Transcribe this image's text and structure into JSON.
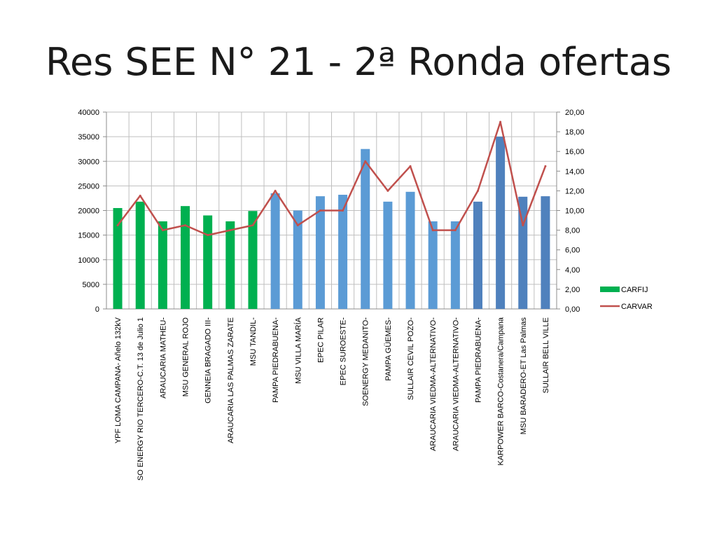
{
  "slide": {
    "title": "Res SEE N° 21 - 2ª Ronda ofertas"
  },
  "chart_data": {
    "type": "bar",
    "title": "",
    "categories": [
      "YPF LOMA CAMPANA- Añelo 132kV",
      "SO ENERGY RIO TERCERO-C.T. 13 de Julio 1",
      "ARAUCARIA MATHEU-",
      "MSU GENERAL ROJO",
      "GENNEIA BRAGADO III-",
      "ARAUCARIA LAS PALMAS ZARATE",
      "MSU TANDIL-",
      "PAMPA PIEDRABUENA-",
      "MSU VILLA MARÍA",
      "EPEC PILAR",
      "EPEC SUROESTE-",
      "SOENERGY MEDANITO-",
      "PAMPA GÜEMES-",
      "SULLAIR CEVIL POZO-",
      "ARAUCARIA VIEDMA-ALTERNATIVO-",
      "ARAUCARIA VIEDMA-ALTERNATIVO-",
      "PAMPA PIEDRABUENA-",
      "KARPOWER BARCO-Costanera/Campana",
      "MSU BARADERO-ET Las Palmas",
      "SULLAIR BELL VILLE"
    ],
    "series": [
      {
        "name": "CARFIJ",
        "axis": "left",
        "type": "bar",
        "color": "#00b050",
        "values": [
          20500,
          21800,
          17800,
          20900,
          19000,
          17800,
          19900,
          23500,
          20000,
          22900,
          23200,
          32500,
          21800,
          23800,
          17800,
          17800,
          21800,
          35000,
          22800,
          22900
        ],
        "bar_colors": [
          "#00b050",
          "#00b050",
          "#00b050",
          "#00b050",
          "#00b050",
          "#00b050",
          "#00b050",
          "#5b9bd5",
          "#5b9bd5",
          "#5b9bd5",
          "#5b9bd5",
          "#5b9bd5",
          "#5b9bd5",
          "#5b9bd5",
          "#5b9bd5",
          "#5b9bd5",
          "#4f81bd",
          "#4f81bd",
          "#4f81bd",
          "#4f81bd"
        ]
      },
      {
        "name": "CARVAR",
        "axis": "right",
        "type": "line",
        "color": "#c0504d",
        "values": [
          8.5,
          11.5,
          8.0,
          8.5,
          7.5,
          8.0,
          8.5,
          12.0,
          8.5,
          10.0,
          10.0,
          15.0,
          12.0,
          14.5,
          8.0,
          8.0,
          12.0,
          19.0,
          8.5,
          14.5
        ]
      }
    ],
    "y_left": {
      "min": 0,
      "max": 40000,
      "step": 5000,
      "tick_labels": [
        "0",
        "5000",
        "10000",
        "15000",
        "20000",
        "25000",
        "30000",
        "35000",
        "40000"
      ]
    },
    "y_right": {
      "min": 0,
      "max": 20,
      "step": 2,
      "tick_labels": [
        "0,00",
        "2,00",
        "4,00",
        "6,00",
        "8,00",
        "10,00",
        "12,00",
        "14,00",
        "16,00",
        "18,00",
        "20,00"
      ]
    },
    "grid": true,
    "legend": {
      "position": "right",
      "entries": [
        "CARFIJ",
        "CARVAR"
      ]
    },
    "colors": {
      "grid": "#bfbfbf",
      "axis": "#8c8c8c",
      "text": "#000000"
    }
  }
}
